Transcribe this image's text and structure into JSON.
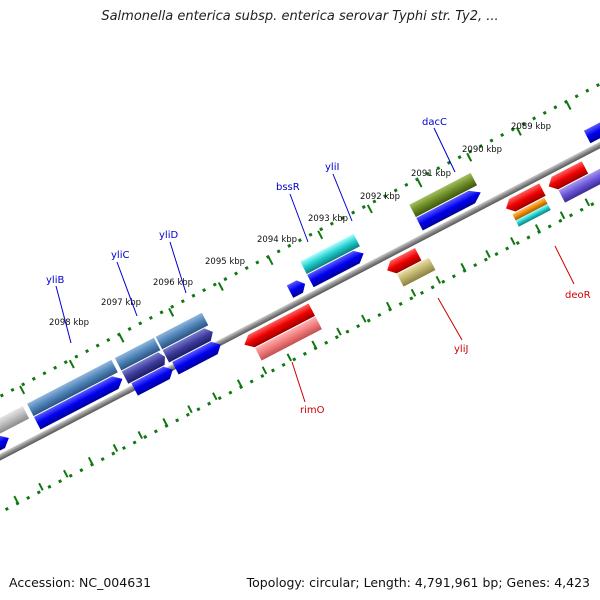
{
  "title": "Salmonella enterica subsp. enterica serovar Typhi str. Ty2, ...",
  "footer": {
    "accession": "Accession: NC_004631",
    "summary": "Topology: circular; Length: 4,791,961 bp; Genes: 4,423"
  },
  "kbp_labels": [
    "2089 kbp",
    "2090 kbp",
    "2091 kbp",
    "2092 kbp",
    "2093 kbp",
    "2094 kbp",
    "2095 kbp",
    "2096 kbp",
    "2097 kbp",
    "2098 kbp"
  ],
  "genes_forward": [
    "yliB",
    "yliC",
    "yliD",
    "bssR",
    "yliI",
    "dacC"
  ],
  "genes_reverse": [
    "rimO",
    "yliJ",
    "deoR"
  ],
  "colors": {
    "forward_gene_label": "#0000cc",
    "reverse_gene_label": "#cc0000",
    "scale_ticks": "#117711",
    "backbone": "#888888",
    "cds_blue": "#0000ee",
    "cds_red": "#ee0000"
  }
}
